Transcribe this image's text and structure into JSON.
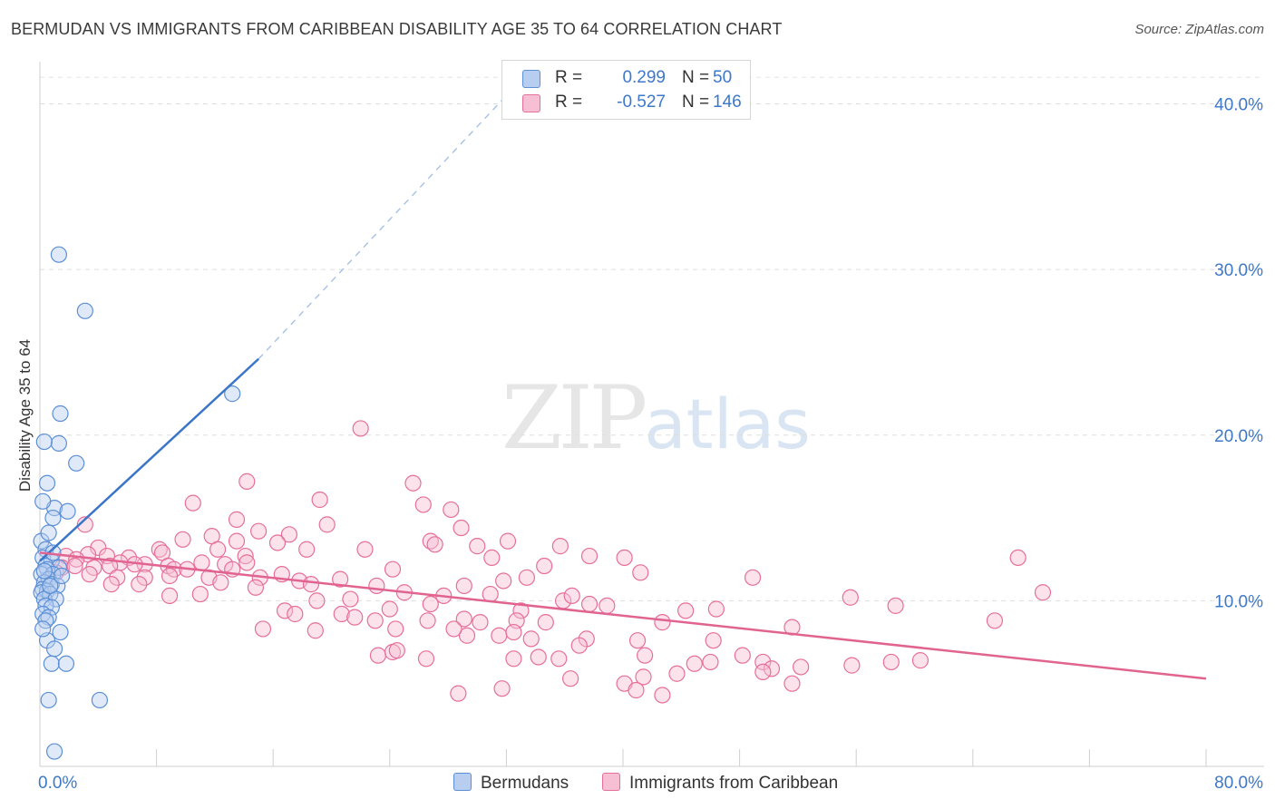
{
  "title": "BERMUDAN VS IMMIGRANTS FROM CARIBBEAN DISABILITY AGE 35 TO 64 CORRELATION CHART",
  "source": "Source: ZipAtlas.com",
  "watermark": {
    "zip": "ZIP",
    "atlas": "atlas"
  },
  "legend": {
    "rows": [
      {
        "r_label": "R =",
        "r_value": "0.299",
        "n_label": "N =",
        "n_value": "50",
        "color": "#5b8fd6",
        "fill": "#b7cef0"
      },
      {
        "r_label": "R =",
        "r_value": "-0.527",
        "n_label": "N =",
        "n_value": "146",
        "color": "#e66f9a",
        "fill": "#f6bfd3"
      }
    ]
  },
  "bottom_legend": [
    {
      "label": "Bermudans",
      "fill": "#b7cef0",
      "color": "#5b8fd6"
    },
    {
      "label": "Immigrants from Caribbean",
      "fill": "#f6bfd3",
      "color": "#e66f9a"
    }
  ],
  "chart_data": {
    "type": "scatter",
    "title": "BERMUDAN VS IMMIGRANTS FROM CARIBBEAN DISABILITY AGE 35 TO 64 CORRELATION CHART",
    "xlabel": "",
    "ylabel": "Disability Age 35 to 64",
    "xlim": [
      0,
      80
    ],
    "ylim": [
      0,
      42
    ],
    "x_tick_labels": [
      "0.0%",
      "80.0%"
    ],
    "y_ticks": [
      10,
      20,
      30,
      40
    ],
    "y_tick_labels": [
      "10.0%",
      "20.0%",
      "30.0%",
      "40.0%"
    ],
    "grid": true,
    "legend_position": "top-center",
    "colors": {
      "bermudans": "#5b8fd6",
      "caribbean": "#e66f9a",
      "bermudans_line": "#3a75c9",
      "caribbean_line": "#e0648f"
    },
    "series": [
      {
        "name": "Bermudans",
        "trend": {
          "x": [
            0.0,
            15.0
          ],
          "y": [
            12.4,
            24.6
          ],
          "dashed_to": [
            32.0,
            40.5
          ]
        },
        "points": [
          [
            1.3,
            30.9
          ],
          [
            3.1,
            27.5
          ],
          [
            13.2,
            22.5
          ],
          [
            1.4,
            21.3
          ],
          [
            1.3,
            19.5
          ],
          [
            0.3,
            19.6
          ],
          [
            2.5,
            18.3
          ],
          [
            0.5,
            17.1
          ],
          [
            1.0,
            15.6
          ],
          [
            1.9,
            15.4
          ],
          [
            0.2,
            16.0
          ],
          [
            0.9,
            15.0
          ],
          [
            0.1,
            13.6
          ],
          [
            0.6,
            14.1
          ],
          [
            0.4,
            13.1
          ],
          [
            0.2,
            12.6
          ],
          [
            0.8,
            12.4
          ],
          [
            0.4,
            12.1
          ],
          [
            1.3,
            12.0
          ],
          [
            0.5,
            11.9
          ],
          [
            0.1,
            11.6
          ],
          [
            0.9,
            11.6
          ],
          [
            0.6,
            11.3
          ],
          [
            0.3,
            11.1
          ],
          [
            0.8,
            11.0
          ],
          [
            1.2,
            10.9
          ],
          [
            0.2,
            10.7
          ],
          [
            0.5,
            10.6
          ],
          [
            0.1,
            10.5
          ],
          [
            0.7,
            10.4
          ],
          [
            0.3,
            10.1
          ],
          [
            1.1,
            10.1
          ],
          [
            0.4,
            9.7
          ],
          [
            0.8,
            9.6
          ],
          [
            0.2,
            9.2
          ],
          [
            0.6,
            9.0
          ],
          [
            0.4,
            8.8
          ],
          [
            1.4,
            8.1
          ],
          [
            0.5,
            7.6
          ],
          [
            1.0,
            7.1
          ],
          [
            0.8,
            6.2
          ],
          [
            1.8,
            6.2
          ],
          [
            0.6,
            4.0
          ],
          [
            4.1,
            4.0
          ],
          [
            1.0,
            0.9
          ],
          [
            0.3,
            11.8
          ],
          [
            0.9,
            12.9
          ],
          [
            0.2,
            8.3
          ],
          [
            1.5,
            11.5
          ],
          [
            0.7,
            10.9
          ]
        ]
      },
      {
        "name": "Immigrants from Caribbean",
        "trend": {
          "x": [
            0.0,
            80.0
          ],
          "y": [
            12.9,
            5.3
          ]
        },
        "points": [
          [
            22.0,
            20.4
          ],
          [
            14.2,
            17.2
          ],
          [
            25.6,
            17.1
          ],
          [
            19.2,
            16.1
          ],
          [
            26.3,
            15.8
          ],
          [
            28.2,
            15.5
          ],
          [
            10.5,
            15.9
          ],
          [
            3.1,
            14.6
          ],
          [
            19.7,
            14.6
          ],
          [
            13.5,
            14.9
          ],
          [
            15.0,
            14.2
          ],
          [
            17.1,
            14.0
          ],
          [
            28.9,
            14.4
          ],
          [
            11.8,
            13.9
          ],
          [
            9.8,
            13.7
          ],
          [
            16.3,
            13.5
          ],
          [
            13.5,
            13.6
          ],
          [
            30.0,
            13.3
          ],
          [
            32.1,
            13.6
          ],
          [
            26.8,
            13.6
          ],
          [
            35.7,
            13.3
          ],
          [
            4.0,
            13.2
          ],
          [
            8.2,
            13.1
          ],
          [
            12.2,
            13.1
          ],
          [
            18.3,
            13.1
          ],
          [
            22.3,
            13.1
          ],
          [
            27.1,
            13.4
          ],
          [
            8.4,
            12.9
          ],
          [
            4.6,
            12.7
          ],
          [
            6.1,
            12.6
          ],
          [
            1.8,
            12.7
          ],
          [
            3.3,
            12.8
          ],
          [
            14.1,
            12.7
          ],
          [
            31.0,
            12.6
          ],
          [
            37.7,
            12.7
          ],
          [
            40.1,
            12.6
          ],
          [
            67.1,
            12.6
          ],
          [
            2.5,
            12.5
          ],
          [
            5.5,
            12.3
          ],
          [
            7.2,
            12.2
          ],
          [
            8.8,
            12.1
          ],
          [
            11.1,
            12.3
          ],
          [
            12.7,
            12.2
          ],
          [
            14.2,
            12.3
          ],
          [
            1.5,
            12.0
          ],
          [
            2.4,
            12.1
          ],
          [
            3.7,
            12.0
          ],
          [
            4.8,
            12.1
          ],
          [
            6.5,
            12.2
          ],
          [
            9.2,
            11.9
          ],
          [
            10.1,
            11.9
          ],
          [
            13.2,
            11.9
          ],
          [
            24.2,
            11.9
          ],
          [
            34.6,
            12.1
          ],
          [
            1.1,
            11.7
          ],
          [
            3.4,
            11.6
          ],
          [
            5.3,
            11.4
          ],
          [
            7.2,
            11.4
          ],
          [
            8.9,
            11.5
          ],
          [
            11.6,
            11.4
          ],
          [
            15.1,
            11.4
          ],
          [
            16.6,
            11.6
          ],
          [
            17.8,
            11.2
          ],
          [
            20.6,
            11.3
          ],
          [
            31.8,
            11.2
          ],
          [
            41.2,
            11.7
          ],
          [
            48.9,
            11.4
          ],
          [
            4.9,
            11.0
          ],
          [
            6.8,
            11.0
          ],
          [
            12.4,
            11.1
          ],
          [
            14.8,
            10.8
          ],
          [
            18.6,
            11.0
          ],
          [
            23.1,
            10.9
          ],
          [
            29.1,
            10.9
          ],
          [
            25.0,
            10.5
          ],
          [
            27.7,
            10.3
          ],
          [
            30.9,
            10.4
          ],
          [
            35.9,
            10.0
          ],
          [
            11.0,
            10.4
          ],
          [
            8.9,
            10.3
          ],
          [
            19.0,
            10.0
          ],
          [
            21.3,
            10.1
          ],
          [
            24.0,
            9.5
          ],
          [
            26.8,
            9.8
          ],
          [
            33.0,
            9.4
          ],
          [
            37.7,
            9.8
          ],
          [
            46.4,
            9.5
          ],
          [
            55.6,
            10.2
          ],
          [
            58.7,
            9.7
          ],
          [
            65.5,
            8.8
          ],
          [
            68.8,
            10.5
          ],
          [
            16.8,
            9.4
          ],
          [
            17.5,
            9.2
          ],
          [
            20.7,
            9.2
          ],
          [
            21.6,
            9.0
          ],
          [
            23.0,
            8.8
          ],
          [
            26.6,
            8.8
          ],
          [
            29.1,
            8.9
          ],
          [
            32.7,
            8.8
          ],
          [
            34.7,
            8.7
          ],
          [
            42.7,
            8.7
          ],
          [
            51.6,
            8.4
          ],
          [
            15.3,
            8.3
          ],
          [
            18.9,
            8.2
          ],
          [
            24.4,
            8.3
          ],
          [
            29.3,
            7.9
          ],
          [
            31.5,
            7.9
          ],
          [
            32.5,
            8.1
          ],
          [
            33.7,
            7.7
          ],
          [
            37.5,
            7.7
          ],
          [
            41.0,
            7.6
          ],
          [
            46.2,
            7.6
          ],
          [
            23.2,
            6.7
          ],
          [
            24.2,
            6.9
          ],
          [
            24.5,
            7.0
          ],
          [
            26.5,
            6.5
          ],
          [
            32.5,
            6.5
          ],
          [
            34.2,
            6.6
          ],
          [
            35.6,
            6.5
          ],
          [
            37.0,
            7.3
          ],
          [
            41.5,
            6.7
          ],
          [
            44.9,
            6.2
          ],
          [
            46.0,
            6.3
          ],
          [
            48.2,
            6.7
          ],
          [
            49.6,
            6.3
          ],
          [
            50.2,
            5.9
          ],
          [
            52.2,
            6.0
          ],
          [
            55.7,
            6.1
          ],
          [
            58.4,
            6.3
          ],
          [
            60.4,
            6.4
          ],
          [
            36.4,
            5.3
          ],
          [
            40.1,
            5.0
          ],
          [
            41.4,
            5.4
          ],
          [
            43.7,
            5.6
          ],
          [
            49.6,
            5.7
          ],
          [
            51.6,
            5.0
          ],
          [
            31.7,
            4.7
          ],
          [
            40.9,
            4.6
          ],
          [
            42.7,
            4.3
          ],
          [
            28.7,
            4.4
          ],
          [
            30.2,
            8.7
          ],
          [
            38.9,
            9.7
          ],
          [
            36.5,
            10.3
          ],
          [
            44.3,
            9.4
          ],
          [
            28.4,
            8.3
          ],
          [
            33.4,
            11.4
          ]
        ]
      }
    ]
  }
}
